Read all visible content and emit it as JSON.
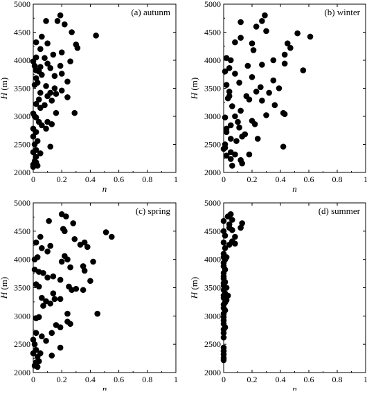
{
  "chart_data": [
    {
      "type": "scatter",
      "annotation": "(a) autunm",
      "xlabel": "n",
      "ylabel": "H (m)",
      "xlim": [
        0,
        1
      ],
      "ylim": [
        2000,
        5000
      ],
      "xticks": [
        "0",
        "0.2",
        "0.4",
        "0.6",
        "0.8",
        "1"
      ],
      "yticks": [
        "2000",
        "2500",
        "3000",
        "3500",
        "4000",
        "4500",
        "5000"
      ],
      "points": [
        [
          0.19,
          4800
        ],
        [
          0.17,
          4700
        ],
        [
          0.09,
          4700
        ],
        [
          0.22,
          4640
        ],
        [
          0.02,
          4320
        ],
        [
          0.1,
          4300
        ],
        [
          0.27,
          4500
        ],
        [
          0.44,
          4440
        ],
        [
          0.3,
          4280
        ],
        [
          0.31,
          4220
        ],
        [
          0.06,
          4420
        ],
        [
          0.05,
          4200
        ],
        [
          0.14,
          4100
        ],
        [
          0.08,
          4040
        ],
        [
          0.2,
          4140
        ],
        [
          0.02,
          4050
        ],
        [
          0.0,
          3980
        ],
        [
          0.1,
          3940
        ],
        [
          0.01,
          3900
        ],
        [
          0.05,
          3880
        ],
        [
          0.02,
          3820
        ],
        [
          0.12,
          3860
        ],
        [
          0.19,
          3900
        ],
        [
          0.26,
          3980
        ],
        [
          0.04,
          3800
        ],
        [
          0.06,
          3740
        ],
        [
          0.15,
          3720
        ],
        [
          0.2,
          3760
        ],
        [
          0.02,
          3680
        ],
        [
          0.09,
          3540
        ],
        [
          0.15,
          3500
        ],
        [
          0.2,
          3460
        ],
        [
          0.24,
          3620
        ],
        [
          0.12,
          3420
        ],
        [
          0.03,
          3600
        ],
        [
          0.01,
          3560
        ],
        [
          0.05,
          3420
        ],
        [
          0.1,
          3360
        ],
        [
          0.16,
          3400
        ],
        [
          0.24,
          3340
        ],
        [
          0.04,
          3300
        ],
        [
          0.08,
          3200
        ],
        [
          0.13,
          3280
        ],
        [
          0.02,
          3220
        ],
        [
          0.05,
          3150
        ],
        [
          0.0,
          3050
        ],
        [
          0.01,
          3000
        ],
        [
          0.16,
          3060
        ],
        [
          0.29,
          3060
        ],
        [
          0.1,
          2900
        ],
        [
          0.02,
          2980
        ],
        [
          0.04,
          2900
        ],
        [
          0.06,
          2840
        ],
        [
          0.13,
          2860
        ],
        [
          0.0,
          2780
        ],
        [
          0.02,
          2720
        ],
        [
          0.09,
          2780
        ],
        [
          0.0,
          2640
        ],
        [
          0.03,
          2560
        ],
        [
          0.01,
          2500
        ],
        [
          0.12,
          2460
        ],
        [
          0.02,
          2400
        ],
        [
          0.0,
          2360
        ],
        [
          0.05,
          2340
        ],
        [
          0.02,
          2280
        ],
        [
          0.01,
          2200
        ],
        [
          0.0,
          2140
        ],
        [
          0.03,
          2120
        ],
        [
          0.0,
          2100
        ],
        [
          0.02,
          2180
        ]
      ]
    },
    {
      "type": "scatter",
      "annotation": "(b) winter",
      "xlabel": "n",
      "ylabel": "H (m)",
      "xlim": [
        0,
        1
      ],
      "ylim": [
        2000,
        5000
      ],
      "xticks": [
        "0",
        "0.2",
        "0.4",
        "0.6",
        "0.8",
        "1"
      ],
      "yticks": [
        "2000",
        "2500",
        "3000",
        "3500",
        "4000",
        "4500",
        "5000"
      ],
      "points": [
        [
          0.29,
          4800
        ],
        [
          0.12,
          4680
        ],
        [
          0.27,
          4700
        ],
        [
          0.3,
          4520
        ],
        [
          0.52,
          4480
        ],
        [
          0.61,
          4420
        ],
        [
          0.2,
          4300
        ],
        [
          0.08,
          4320
        ],
        [
          0.23,
          4600
        ],
        [
          0.45,
          4300
        ],
        [
          0.47,
          4220
        ],
        [
          0.21,
          4180
        ],
        [
          0.12,
          4400
        ],
        [
          0.43,
          4100
        ],
        [
          0.02,
          4040
        ],
        [
          0.05,
          4000
        ],
        [
          0.35,
          4000
        ],
        [
          0.27,
          3920
        ],
        [
          0.43,
          3940
        ],
        [
          0.56,
          3820
        ],
        [
          0.04,
          3860
        ],
        [
          0.17,
          3900
        ],
        [
          0.08,
          3760
        ],
        [
          0.01,
          3800
        ],
        [
          0.2,
          3700
        ],
        [
          0.35,
          3640
        ],
        [
          0.02,
          3560
        ],
        [
          0.11,
          3600
        ],
        [
          0.26,
          3520
        ],
        [
          0.39,
          3500
        ],
        [
          0.04,
          3440
        ],
        [
          0.23,
          3440
        ],
        [
          0.32,
          3420
        ],
        [
          0.16,
          3360
        ],
        [
          0.27,
          3280
        ],
        [
          0.18,
          3300
        ],
        [
          0.03,
          3320
        ],
        [
          0.36,
          3200
        ],
        [
          0.42,
          3060
        ],
        [
          0.43,
          3040
        ],
        [
          0.06,
          3180
        ],
        [
          0.12,
          3100
        ],
        [
          0.3,
          3020
        ],
        [
          0.08,
          3000
        ],
        [
          0.01,
          2980
        ],
        [
          0.1,
          2900
        ],
        [
          0.2,
          2920
        ],
        [
          0.22,
          2860
        ],
        [
          0.05,
          2840
        ],
        [
          0.11,
          2800
        ],
        [
          0.02,
          2780
        ],
        [
          0.13,
          2640
        ],
        [
          0.02,
          2720
        ],
        [
          0.05,
          2600
        ],
        [
          0.09,
          2560
        ],
        [
          0.01,
          2500
        ],
        [
          0.01,
          2440
        ],
        [
          0.05,
          2360
        ],
        [
          0.08,
          2320
        ],
        [
          0.18,
          2320
        ],
        [
          0.12,
          2220
        ],
        [
          0.05,
          2240
        ],
        [
          0.13,
          2160
        ],
        [
          0.02,
          2300
        ],
        [
          0.0,
          2420
        ],
        [
          0.06,
          2120
        ],
        [
          0.42,
          2460
        ],
        [
          0.24,
          2600
        ],
        [
          0.04,
          3360
        ],
        [
          0.15,
          2680
        ]
      ]
    },
    {
      "type": "scatter",
      "annotation": "(c) spring",
      "xlabel": "n",
      "ylabel": "H (m)",
      "xlim": [
        0,
        1
      ],
      "ylim": [
        2000,
        5000
      ],
      "xticks": [
        "0",
        "0.2",
        "0.4",
        "0.6",
        "0.8",
        "1"
      ],
      "yticks": [
        "2000",
        "2500",
        "3000",
        "3500",
        "4000",
        "4500",
        "5000"
      ],
      "points": [
        [
          0.2,
          4800
        ],
        [
          0.23,
          4760
        ],
        [
          0.28,
          4640
        ],
        [
          0.11,
          4680
        ],
        [
          0.51,
          4480
        ],
        [
          0.55,
          4400
        ],
        [
          0.21,
          4540
        ],
        [
          0.05,
          4400
        ],
        [
          0.22,
          4500
        ],
        [
          0.29,
          4360
        ],
        [
          0.02,
          4300
        ],
        [
          0.12,
          4240
        ],
        [
          0.06,
          4200
        ],
        [
          0.36,
          4300
        ],
        [
          0.38,
          4220
        ],
        [
          0.33,
          4260
        ],
        [
          0.1,
          4140
        ],
        [
          0.01,
          4000
        ],
        [
          0.03,
          4040
        ],
        [
          0.22,
          4060
        ],
        [
          0.24,
          4000
        ],
        [
          0.2,
          3960
        ],
        [
          0.42,
          3960
        ],
        [
          0.26,
          3860
        ],
        [
          0.01,
          3820
        ],
        [
          0.04,
          3780
        ],
        [
          0.07,
          3760
        ],
        [
          0.14,
          3700
        ],
        [
          0.35,
          3880
        ],
        [
          0.36,
          3800
        ],
        [
          0.1,
          3680
        ],
        [
          0.19,
          3640
        ],
        [
          0.4,
          3620
        ],
        [
          0.02,
          3560
        ],
        [
          0.04,
          3520
        ],
        [
          0.25,
          3520
        ],
        [
          0.27,
          3460
        ],
        [
          0.3,
          3480
        ],
        [
          0.35,
          3460
        ],
        [
          0.14,
          3400
        ],
        [
          0.06,
          3320
        ],
        [
          0.09,
          3260
        ],
        [
          0.15,
          3300
        ],
        [
          0.19,
          3300
        ],
        [
          0.12,
          3220
        ],
        [
          0.07,
          3180
        ],
        [
          0.24,
          3040
        ],
        [
          0.45,
          3040
        ],
        [
          0.02,
          2960
        ],
        [
          0.04,
          2980
        ],
        [
          0.24,
          2900
        ],
        [
          0.26,
          2860
        ],
        [
          0.16,
          2840
        ],
        [
          0.19,
          2800
        ],
        [
          0.02,
          2700
        ],
        [
          0.13,
          2700
        ],
        [
          0.06,
          2640
        ],
        [
          0.0,
          2580
        ],
        [
          0.01,
          2500
        ],
        [
          0.19,
          2440
        ],
        [
          0.02,
          2400
        ],
        [
          0.0,
          2340
        ],
        [
          0.13,
          2300
        ],
        [
          0.03,
          2280
        ],
        [
          0.02,
          2180
        ],
        [
          0.01,
          2120
        ],
        [
          0.03,
          2100
        ],
        [
          0.04,
          2200
        ],
        [
          0.05,
          2340
        ],
        [
          0.09,
          2560
        ]
      ]
    },
    {
      "type": "scatter",
      "annotation": "(d) summer",
      "xlabel": "n",
      "ylabel": "H (m)",
      "xlim": [
        0,
        1
      ],
      "ylim": [
        2000,
        5000
      ],
      "xticks": [
        "0",
        "0.2",
        "0.4",
        "0.6",
        "0.8",
        "1"
      ],
      "yticks": [
        "2000",
        "2500",
        "3000",
        "3500",
        "4000",
        "4500",
        "5000"
      ],
      "points": [
        [
          0.05,
          4800
        ],
        [
          0.03,
          4760
        ],
        [
          0.06,
          4700
        ],
        [
          0.0,
          4680
        ],
        [
          0.13,
          4640
        ],
        [
          0.12,
          4560
        ],
        [
          0.04,
          4560
        ],
        [
          0.0,
          4500
        ],
        [
          0.06,
          4520
        ],
        [
          0.01,
          4420
        ],
        [
          0.08,
          4400
        ],
        [
          0.06,
          4320
        ],
        [
          0.0,
          4300
        ],
        [
          0.08,
          4280
        ],
        [
          0.04,
          4260
        ],
        [
          0.01,
          4200
        ],
        [
          0.0,
          4100
        ],
        [
          0.0,
          4040
        ],
        [
          0.01,
          4000
        ],
        [
          0.0,
          3940
        ],
        [
          0.0,
          3880
        ],
        [
          0.01,
          3820
        ],
        [
          0.0,
          3760
        ],
        [
          0.0,
          3700
        ],
        [
          0.0,
          3660
        ],
        [
          0.01,
          3600
        ],
        [
          0.0,
          3540
        ],
        [
          0.02,
          3500
        ],
        [
          0.0,
          3460
        ],
        [
          0.01,
          3400
        ],
        [
          0.0,
          3360
        ],
        [
          0.0,
          3320
        ],
        [
          0.03,
          3360
        ],
        [
          0.01,
          3240
        ],
        [
          0.0,
          3200
        ],
        [
          0.0,
          3140
        ],
        [
          0.01,
          3100
        ],
        [
          0.0,
          3040
        ],
        [
          0.0,
          2980
        ],
        [
          0.0,
          2920
        ],
        [
          0.0,
          2860
        ],
        [
          0.01,
          2800
        ],
        [
          0.0,
          2760
        ],
        [
          0.0,
          2700
        ],
        [
          0.0,
          2620
        ],
        [
          0.0,
          2440
        ],
        [
          0.0,
          2380
        ],
        [
          0.0,
          2320
        ],
        [
          0.0,
          2260
        ],
        [
          0.0,
          2220
        ],
        [
          0.02,
          3280
        ],
        [
          0.04,
          4620
        ],
        [
          0.02,
          4040
        ],
        [
          0.0,
          3580
        ]
      ]
    }
  ]
}
